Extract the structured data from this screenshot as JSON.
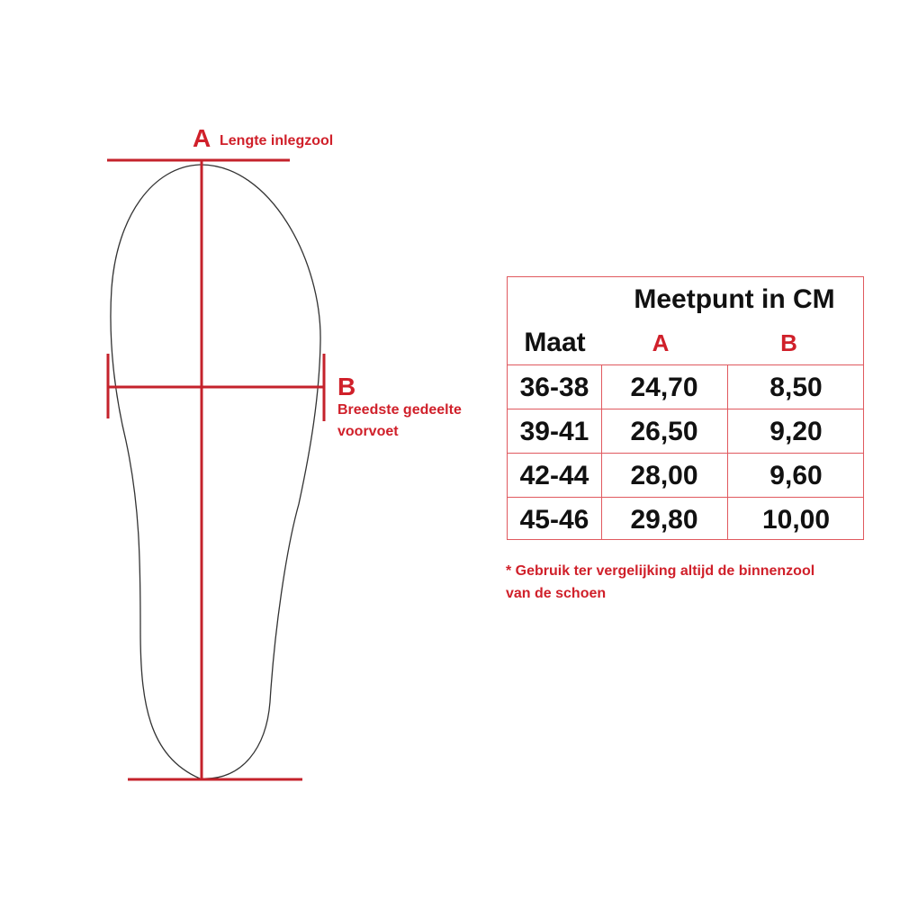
{
  "diagram": {
    "label_a": {
      "letter": "A",
      "text": "Lengte inlegzool"
    },
    "label_b": {
      "letter": "B",
      "text_line1": "Breedste gedeelte",
      "text_line2": "voorvoet"
    },
    "accent_color": "#d0202a"
  },
  "table": {
    "title": "Meetpunt in CM",
    "headers": [
      "Maat",
      "A",
      "B"
    ],
    "rows": [
      [
        "36-38",
        "24,70",
        "8,50"
      ],
      [
        "39-41",
        "26,50",
        "9,20"
      ],
      [
        "42-44",
        "28,00",
        "9,60"
      ],
      [
        "45-46",
        "29,80",
        "10,00"
      ]
    ]
  },
  "note": {
    "line1": "* Gebruik ter vergelijking altijd de binnenzool",
    "line2": "van de schoen"
  }
}
